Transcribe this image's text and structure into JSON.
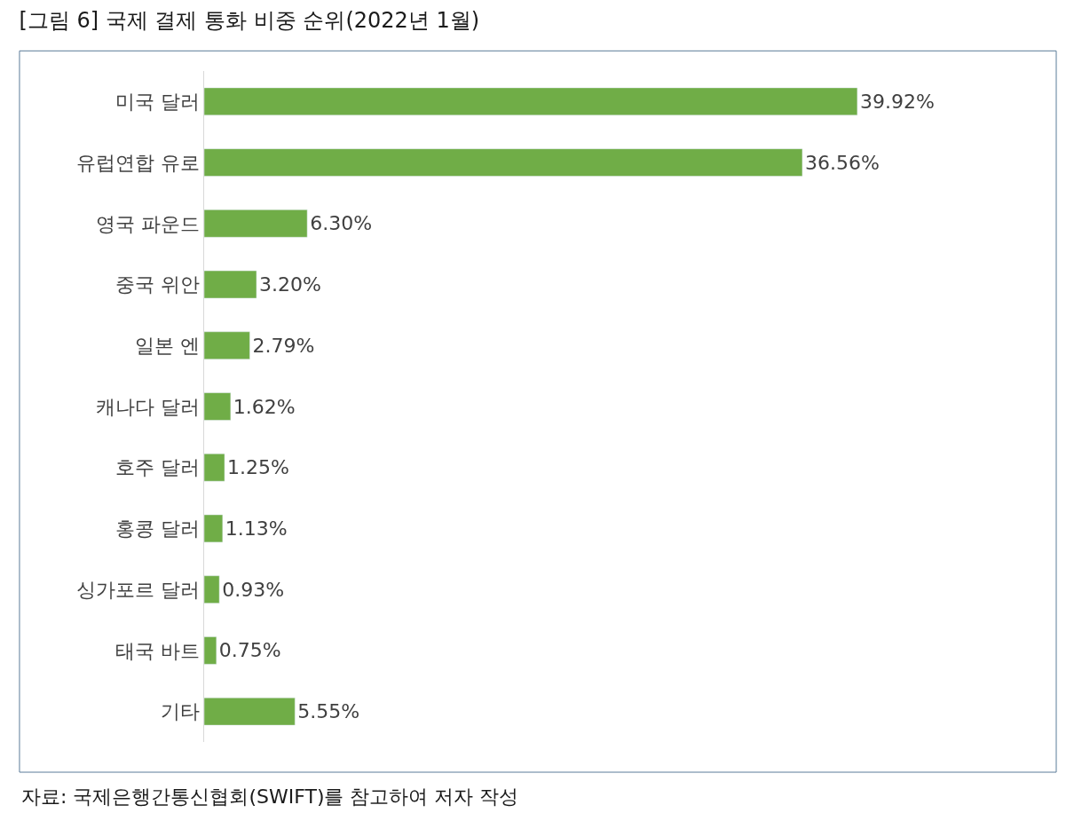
{
  "chart_data": {
    "type": "bar",
    "orientation": "horizontal",
    "title": "[그림 6] 국제 결제 통화 비중 순위(2022년 1월)",
    "categories": [
      "미국 달러",
      "유럽연합 유로",
      "영국 파운드",
      "중국 위안",
      "일본 엔",
      "캐나다 달러",
      "호주 달러",
      "홍콩 달러",
      "싱가포르 달러",
      "태국 바트",
      "기타"
    ],
    "values": [
      39.92,
      36.56,
      6.3,
      3.2,
      2.79,
      1.62,
      1.25,
      1.13,
      0.93,
      0.75,
      5.55
    ],
    "value_labels": [
      "39.92%",
      "36.56%",
      "6.30%",
      "3.20%",
      "2.79%",
      "1.62%",
      "1.25%",
      "1.13%",
      "0.93%",
      "0.75%",
      "5.55%"
    ],
    "color": "#70ad47",
    "tick_labels": "y",
    "annotations": [
      "자료: 국제은행간통신협회(SWIFT)를 참고하여 저자 작성"
    ]
  }
}
